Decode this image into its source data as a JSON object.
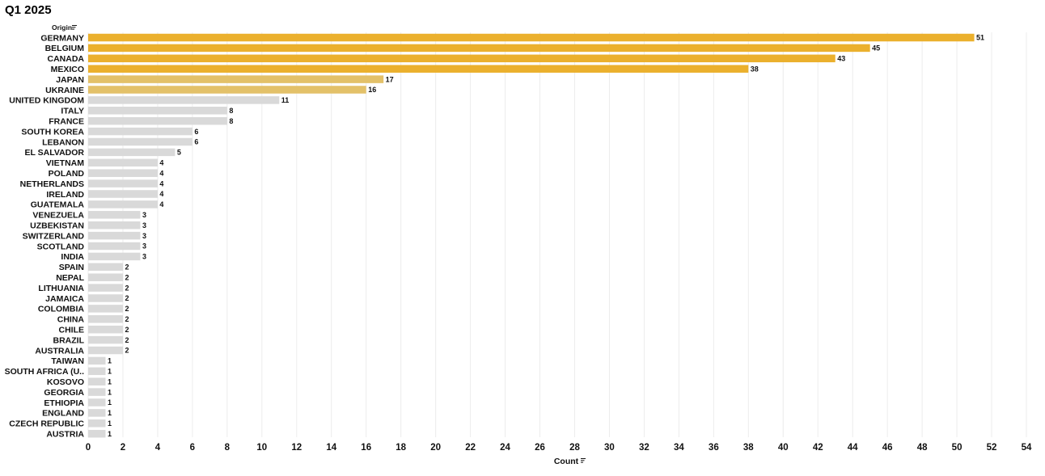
{
  "chart_data": {
    "type": "bar",
    "orientation": "horizontal",
    "title": "Q1 2025",
    "ylabel": "Origin",
    "xlabel": "Count",
    "xlim": [
      0,
      54
    ],
    "xticks": [
      0,
      2,
      4,
      6,
      8,
      10,
      12,
      14,
      16,
      18,
      20,
      22,
      24,
      26,
      28,
      30,
      32,
      34,
      36,
      38,
      40,
      42,
      44,
      46,
      48,
      50,
      52,
      54
    ],
    "grid": true,
    "categories": [
      "GERMANY",
      "BELGIUM",
      "CANADA",
      "MEXICO",
      "JAPAN",
      "UKRAINE",
      "UNITED KINGDOM",
      "ITALY",
      "FRANCE",
      "SOUTH KOREA",
      "LEBANON",
      "EL SALVADOR",
      "VIETNAM",
      "POLAND",
      "NETHERLANDS",
      "IRELAND",
      "GUATEMALA",
      "VENEZUELA",
      "UZBEKISTAN",
      "SWITZERLAND",
      "SCOTLAND",
      "INDIA",
      "SPAIN",
      "NEPAL",
      "LITHUANIA",
      "JAMAICA",
      "COLOMBIA",
      "CHINA",
      "CHILE",
      "BRAZIL",
      "AUSTRALIA",
      "TAIWAN",
      "SOUTH AFRICA (U..",
      "KOSOVO",
      "GEORGIA",
      "ETHIOPIA",
      "ENGLAND",
      "CZECH REPUBLIC",
      "AUSTRIA"
    ],
    "values": [
      51,
      45,
      43,
      38,
      17,
      16,
      11,
      8,
      8,
      6,
      6,
      5,
      4,
      4,
      4,
      4,
      4,
      3,
      3,
      3,
      3,
      3,
      2,
      2,
      2,
      2,
      2,
      2,
      2,
      2,
      2,
      1,
      1,
      1,
      1,
      1,
      1,
      1,
      1
    ],
    "colors": {
      "high": "#ebb02d",
      "mid": "#e3c169",
      "low": "#d9d9d9"
    },
    "color_thresholds": {
      "high_min": 38,
      "mid_min": 16
    }
  }
}
